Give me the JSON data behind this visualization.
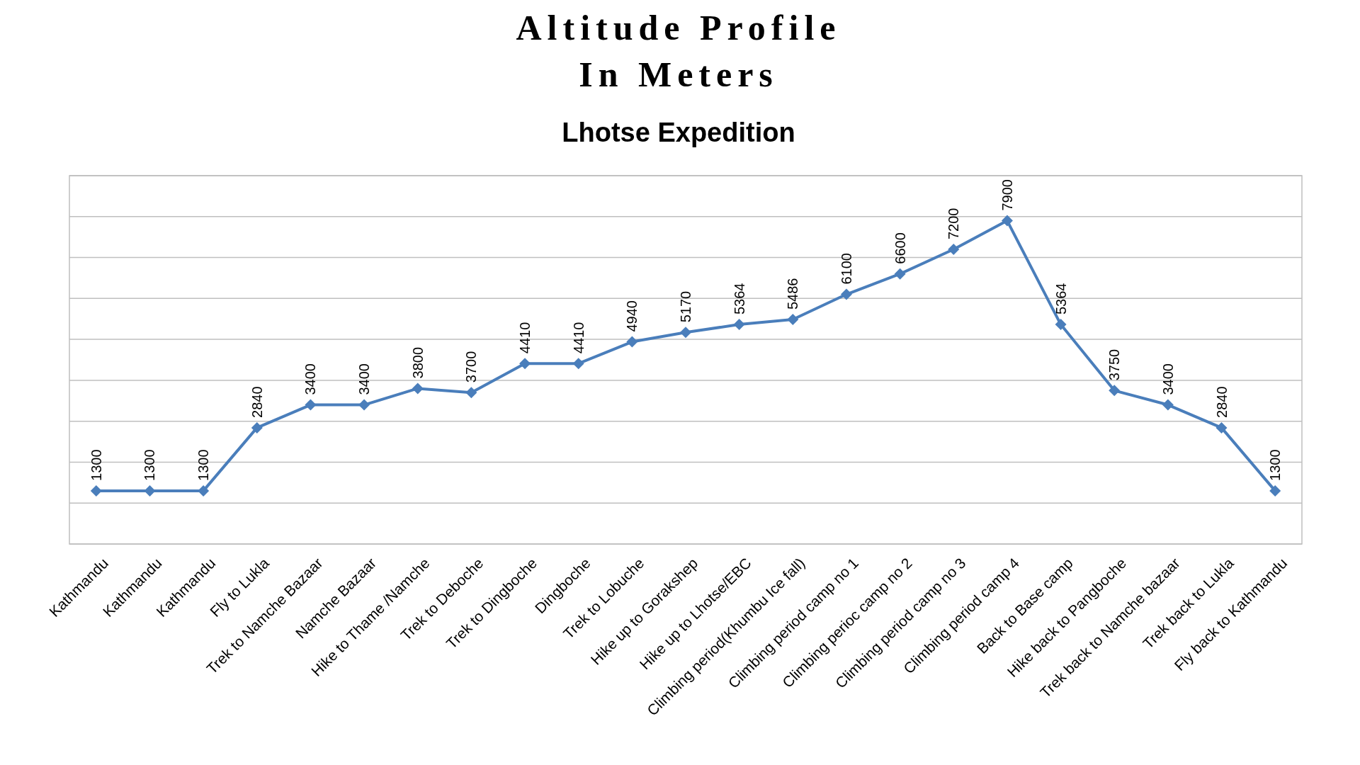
{
  "chart_data": {
    "type": "line",
    "title": "Altitude Profile\nIn Meters",
    "subtitle": "Lhotse Expedition",
    "categories": [
      "Kathmandu",
      "Kathmandu",
      "Kathmandu",
      "Fly to Lukla",
      "Trek to Namche Bazaar",
      "Namche Bazaar",
      "Hike to Thame /Namche",
      "Trek to Deboche",
      "Trek to Dingboche",
      "Dingboche",
      "Trek to Lobuche",
      "Hike up to Gorakshep",
      "Hike up to Lhotse/EBC",
      "Climbing period(Khumbu Ice fall)",
      "Climbing period camp no 1",
      "Climbing perioc camp no 2",
      "Climbing period camp no 3",
      "Climbing period camp 4",
      "Back to Base camp",
      "Hike back to Pangboche",
      "Trek back to Namche bazaar",
      "Trek back to Lukla",
      "Fly back to Kathmandu"
    ],
    "series": [
      {
        "color": "#4a7ebb",
        "values": [
          1300,
          1300,
          1300,
          2840,
          3400,
          3400,
          3800,
          3700,
          4410,
          4410,
          4940,
          5170,
          5364,
          5486,
          6100,
          6600,
          7200,
          7900,
          5364,
          3750,
          3400,
          2840,
          1300
        ]
      }
    ],
    "ylim": [
      0,
      9000
    ],
    "yticks": [
      {
        "value": 0,
        "label": null
      },
      {
        "value": 1000,
        "label": null
      },
      {
        "value": 2000,
        "label": null
      },
      {
        "value": 3000,
        "label": null
      },
      {
        "value": 4000,
        "label": null
      },
      {
        "value": 5000,
        "label": null
      },
      {
        "value": 6000,
        "label": null
      },
      {
        "value": 7000,
        "label": null
      },
      {
        "value": 8000,
        "label": null
      },
      {
        "value": 9000,
        "label": null
      }
    ],
    "tick_labels": "x",
    "grid": "y",
    "data_labels": true,
    "marker": "diamond",
    "line_style": "solid"
  }
}
